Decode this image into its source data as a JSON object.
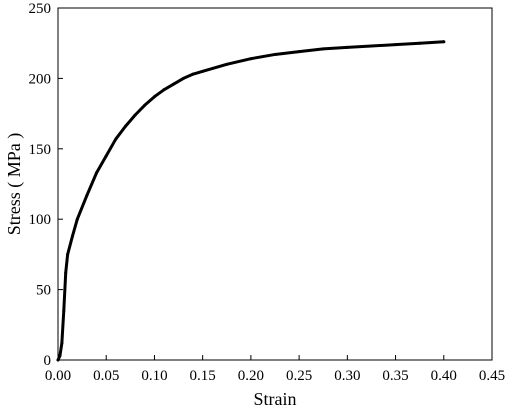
{
  "chart_data": {
    "type": "line",
    "title": "",
    "xlabel": "Strain",
    "ylabel": "Stress ( MPa )",
    "xlim": [
      0.0,
      0.45
    ],
    "ylim": [
      0,
      250
    ],
    "x_ticks": [
      0.0,
      0.05,
      0.1,
      0.15,
      0.2,
      0.25,
      0.3,
      0.35,
      0.4,
      0.45
    ],
    "x_tick_labels": [
      "0.00",
      "0.05",
      "0.10",
      "0.15",
      "0.20",
      "0.25",
      "0.30",
      "0.35",
      "0.40",
      "0.45"
    ],
    "y_ticks": [
      0,
      50,
      100,
      150,
      200,
      250
    ],
    "y_tick_labels": [
      "0",
      "50",
      "100",
      "150",
      "200",
      "250"
    ],
    "grid": false,
    "legend": "none",
    "line_color": "#000000",
    "series": [
      {
        "x": [
          0.0,
          0.002,
          0.004,
          0.006,
          0.008,
          0.01,
          0.015,
          0.02,
          0.03,
          0.04,
          0.05,
          0.06,
          0.07,
          0.08,
          0.09,
          0.1,
          0.11,
          0.12,
          0.13,
          0.14,
          0.15,
          0.175,
          0.2,
          0.225,
          0.25,
          0.275,
          0.3,
          0.325,
          0.35,
          0.375,
          0.4
        ],
        "y": [
          0,
          3,
          12,
          35,
          62,
          75,
          88,
          100,
          117,
          133,
          145,
          157,
          166,
          174,
          181,
          187,
          192,
          196,
          200,
          203,
          205,
          210,
          214,
          217,
          219,
          221,
          222,
          223,
          224,
          225,
          226
        ]
      }
    ]
  }
}
